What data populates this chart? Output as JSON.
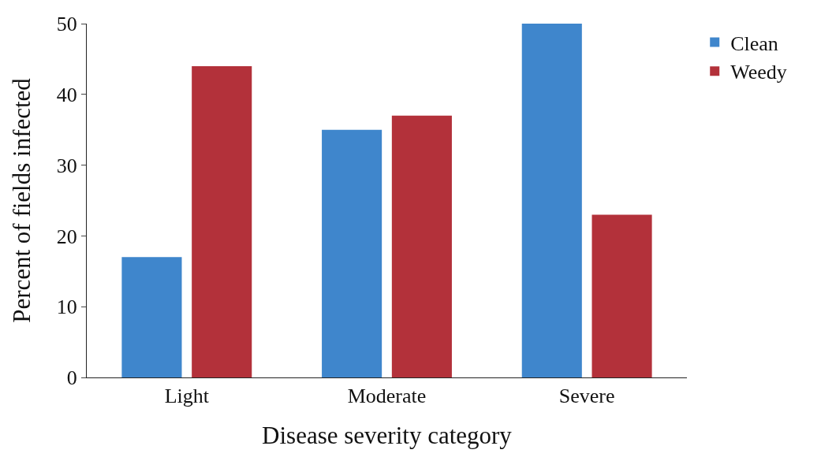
{
  "chart_data": {
    "type": "bar",
    "xlabel": "Disease severity category",
    "ylabel": "Percent of fields infected",
    "categories": [
      "Light",
      "Moderate",
      "Severe"
    ],
    "series": [
      {
        "name": "Clean",
        "color": "#3f86cc",
        "values": [
          17,
          35,
          50
        ]
      },
      {
        "name": "Weedy",
        "color": "#b3313a",
        "values": [
          44,
          37,
          23
        ]
      }
    ],
    "ylim": [
      0,
      50
    ],
    "yticks": [
      0,
      10,
      20,
      30,
      40,
      50
    ],
    "grid": false,
    "legend": "top right"
  }
}
